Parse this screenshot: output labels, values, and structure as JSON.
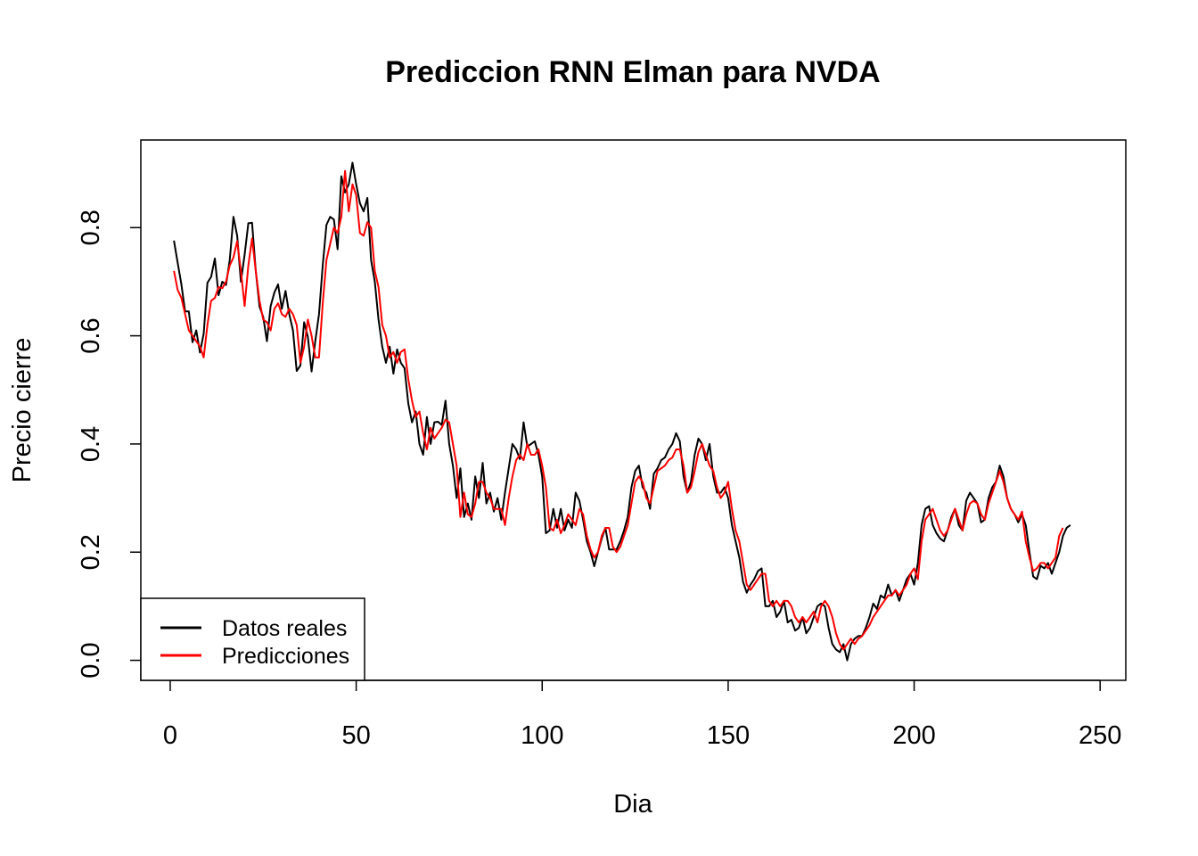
{
  "chart_data": {
    "type": "line",
    "title": "Prediccion RNN Elman para  NVDA",
    "xlabel": "Dia",
    "ylabel": "Precio cierre",
    "xlim": [
      -7.9,
      256.9
    ],
    "ylim": [
      -0.037,
      0.962
    ],
    "x_ticks": [
      0,
      50,
      100,
      150,
      200,
      250
    ],
    "y_ticks": [
      0.0,
      0.2,
      0.4,
      0.6,
      0.8
    ],
    "x_tick_labels": [
      "0",
      "50",
      "100",
      "150",
      "200",
      "250"
    ],
    "y_tick_labels": [
      "0.0",
      "0.2",
      "0.4",
      "0.6",
      "0.8"
    ],
    "grid": false,
    "legend_position": "bottom-left",
    "x_start": 1,
    "series": [
      {
        "name": "Datos reales",
        "color": "#000000",
        "values": [
          0.776,
          0.735,
          0.695,
          0.645,
          0.645,
          0.588,
          0.61,
          0.569,
          0.604,
          0.698,
          0.709,
          0.743,
          0.675,
          0.7,
          0.694,
          0.74,
          0.82,
          0.785,
          0.7,
          0.75,
          0.808,
          0.809,
          0.72,
          0.654,
          0.635,
          0.59,
          0.655,
          0.68,
          0.695,
          0.65,
          0.683,
          0.64,
          0.61,
          0.535,
          0.545,
          0.625,
          0.598,
          0.534,
          0.59,
          0.64,
          0.73,
          0.805,
          0.82,
          0.815,
          0.76,
          0.895,
          0.865,
          0.88,
          0.92,
          0.88,
          0.845,
          0.83,
          0.855,
          0.74,
          0.7,
          0.63,
          0.58,
          0.55,
          0.58,
          0.53,
          0.575,
          0.55,
          0.54,
          0.475,
          0.44,
          0.46,
          0.4,
          0.38,
          0.45,
          0.4,
          0.44,
          0.441,
          0.435,
          0.48,
          0.4,
          0.36,
          0.3,
          0.355,
          0.265,
          0.29,
          0.26,
          0.34,
          0.3,
          0.365,
          0.29,
          0.31,
          0.275,
          0.3,
          0.26,
          0.31,
          0.355,
          0.4,
          0.39,
          0.372,
          0.44,
          0.395,
          0.4,
          0.405,
          0.38,
          0.34,
          0.235,
          0.24,
          0.28,
          0.245,
          0.28,
          0.24,
          0.26,
          0.245,
          0.31,
          0.295,
          0.26,
          0.22,
          0.2,
          0.174,
          0.2,
          0.225,
          0.245,
          0.205,
          0.205,
          0.205,
          0.22,
          0.24,
          0.265,
          0.32,
          0.35,
          0.36,
          0.32,
          0.31,
          0.28,
          0.345,
          0.355,
          0.37,
          0.375,
          0.39,
          0.4,
          0.42,
          0.405,
          0.34,
          0.31,
          0.33,
          0.38,
          0.41,
          0.4,
          0.37,
          0.4,
          0.34,
          0.31,
          0.31,
          0.32,
          0.3,
          0.25,
          0.22,
          0.19,
          0.145,
          0.125,
          0.14,
          0.15,
          0.165,
          0.17,
          0.1,
          0.1,
          0.11,
          0.08,
          0.09,
          0.11,
          0.07,
          0.075,
          0.055,
          0.06,
          0.08,
          0.05,
          0.06,
          0.08,
          0.1,
          0.105,
          0.1,
          0.06,
          0.03,
          0.02,
          0.015,
          0.03,
          0.0,
          0.03,
          0.04,
          0.045,
          0.045,
          0.06,
          0.08,
          0.105,
          0.095,
          0.12,
          0.115,
          0.14,
          0.12,
          0.13,
          0.11,
          0.13,
          0.15,
          0.16,
          0.14,
          0.18,
          0.25,
          0.28,
          0.285,
          0.25,
          0.235,
          0.225,
          0.22,
          0.24,
          0.265,
          0.28,
          0.25,
          0.24,
          0.295,
          0.31,
          0.3,
          0.29,
          0.255,
          0.26,
          0.3,
          0.32,
          0.33,
          0.36,
          0.34,
          0.3,
          0.28,
          0.27,
          0.255,
          0.27,
          0.25,
          0.2,
          0.155,
          0.15,
          0.175,
          0.17,
          0.18,
          0.16,
          0.18,
          0.2,
          0.23,
          0.245,
          0.25
        ]
      },
      {
        "name": "Predicciones",
        "color": "#ff0000",
        "values": [
          0.72,
          0.685,
          0.67,
          0.64,
          0.61,
          0.6,
          0.59,
          0.58,
          0.56,
          0.62,
          0.665,
          0.67,
          0.69,
          0.688,
          0.7,
          0.73,
          0.745,
          0.775,
          0.72,
          0.655,
          0.73,
          0.78,
          0.72,
          0.665,
          0.63,
          0.625,
          0.61,
          0.65,
          0.66,
          0.64,
          0.635,
          0.65,
          0.64,
          0.62,
          0.55,
          0.58,
          0.63,
          0.6,
          0.56,
          0.56,
          0.66,
          0.74,
          0.77,
          0.8,
          0.79,
          0.82,
          0.905,
          0.83,
          0.88,
          0.86,
          0.79,
          0.785,
          0.81,
          0.8,
          0.72,
          0.69,
          0.62,
          0.6,
          0.56,
          0.57,
          0.55,
          0.57,
          0.575,
          0.52,
          0.48,
          0.45,
          0.46,
          0.42,
          0.39,
          0.43,
          0.41,
          0.42,
          0.43,
          0.445,
          0.44,
          0.4,
          0.36,
          0.265,
          0.31,
          0.27,
          0.265,
          0.29,
          0.33,
          0.33,
          0.31,
          0.3,
          0.28,
          0.28,
          0.28,
          0.25,
          0.3,
          0.34,
          0.37,
          0.38,
          0.37,
          0.4,
          0.38,
          0.38,
          0.39,
          0.36,
          0.32,
          0.245,
          0.24,
          0.26,
          0.235,
          0.25,
          0.27,
          0.26,
          0.25,
          0.28,
          0.27,
          0.23,
          0.205,
          0.19,
          0.2,
          0.23,
          0.245,
          0.245,
          0.21,
          0.2,
          0.21,
          0.23,
          0.25,
          0.29,
          0.33,
          0.34,
          0.33,
          0.3,
          0.29,
          0.32,
          0.35,
          0.355,
          0.36,
          0.37,
          0.375,
          0.39,
          0.39,
          0.36,
          0.31,
          0.32,
          0.35,
          0.385,
          0.4,
          0.38,
          0.36,
          0.35,
          0.32,
          0.3,
          0.31,
          0.33,
          0.28,
          0.24,
          0.22,
          0.18,
          0.14,
          0.13,
          0.14,
          0.15,
          0.16,
          0.16,
          0.11,
          0.1,
          0.11,
          0.1,
          0.11,
          0.11,
          0.1,
          0.08,
          0.07,
          0.08,
          0.07,
          0.08,
          0.09,
          0.07,
          0.1,
          0.11,
          0.1,
          0.08,
          0.05,
          0.03,
          0.02,
          0.03,
          0.04,
          0.03,
          0.04,
          0.045,
          0.055,
          0.065,
          0.08,
          0.09,
          0.1,
          0.11,
          0.12,
          0.12,
          0.13,
          0.12,
          0.13,
          0.14,
          0.16,
          0.17,
          0.15,
          0.22,
          0.26,
          0.27,
          0.28,
          0.26,
          0.24,
          0.23,
          0.24,
          0.26,
          0.28,
          0.26,
          0.24,
          0.27,
          0.29,
          0.295,
          0.29,
          0.27,
          0.26,
          0.29,
          0.31,
          0.33,
          0.35,
          0.33,
          0.3,
          0.28,
          0.27,
          0.26,
          0.275,
          0.22,
          0.19,
          0.165,
          0.17,
          0.18,
          0.18,
          0.17,
          0.18,
          0.19,
          0.23,
          0.245
        ]
      }
    ]
  }
}
